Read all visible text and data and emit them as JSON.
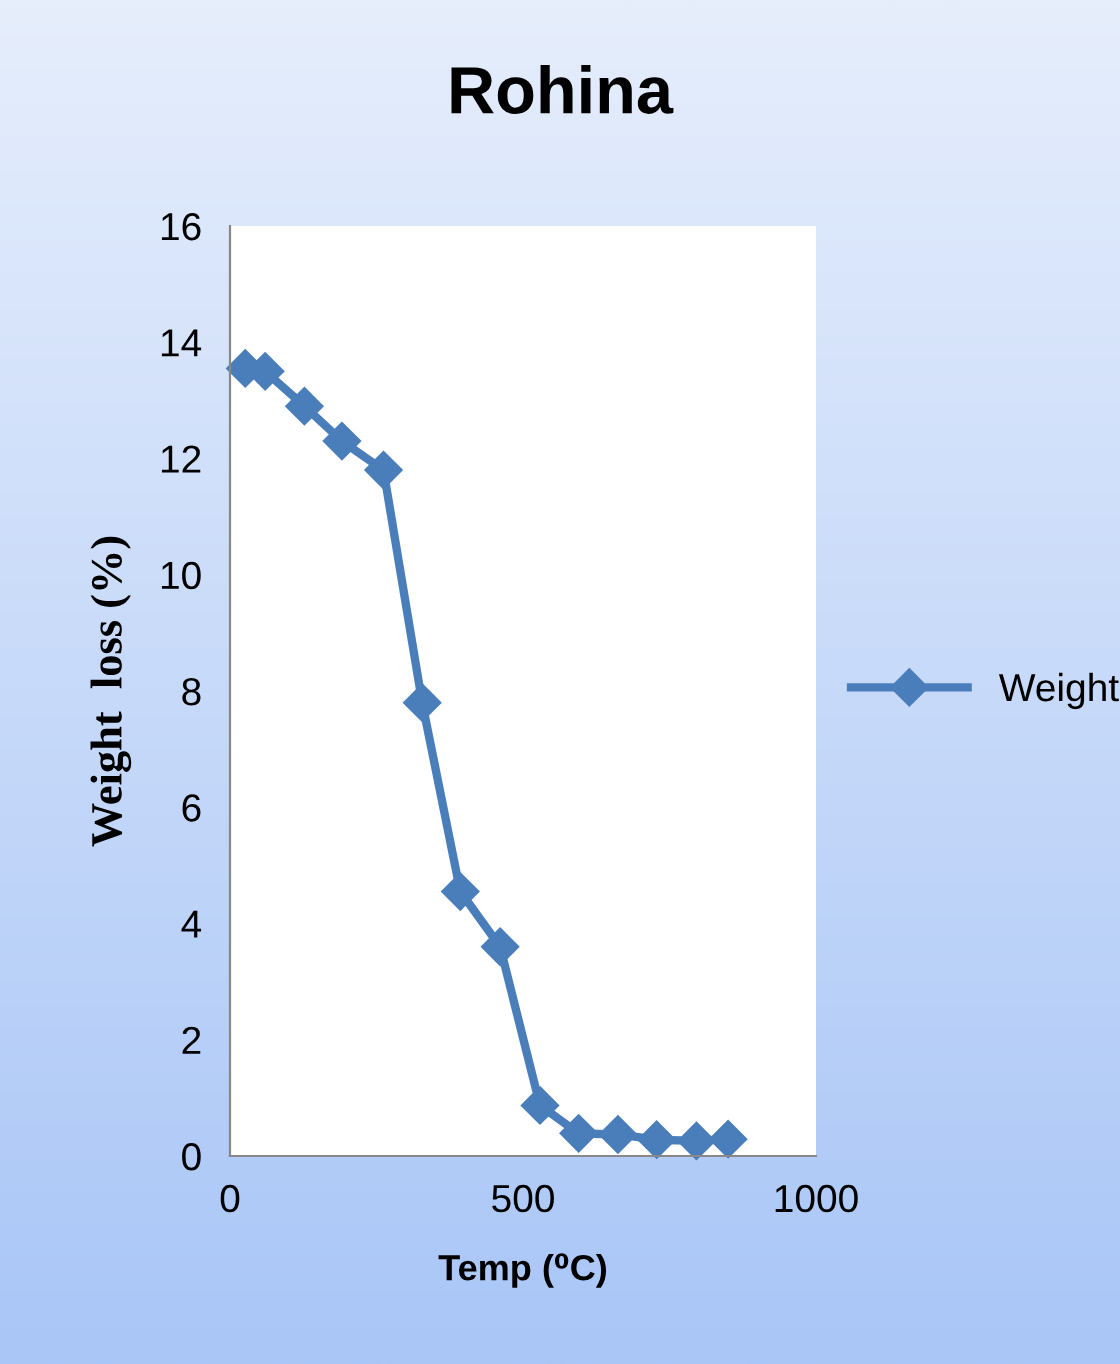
{
  "chart_data": {
    "type": "line",
    "title": "Rohina",
    "xlabel": "Temp (⁰C)",
    "ylabel": "Weight  loss (%)",
    "x": [
      26,
      60,
      127,
      191,
      262,
      328,
      393,
      461,
      529,
      595,
      662,
      728,
      796,
      850
    ],
    "series": [
      {
        "name": "Weight",
        "color": "#4a7ebb",
        "values": [
          13.55,
          13.5,
          12.9,
          12.3,
          11.8,
          7.8,
          4.55,
          3.6,
          0.87,
          0.39,
          0.37,
          0.28,
          0.26,
          0.29
        ]
      }
    ],
    "xlim": [
      0,
      1000
    ],
    "xticks": [
      0,
      500,
      1000
    ],
    "ylim": [
      0,
      16
    ],
    "yticks": [
      0,
      2,
      4,
      6,
      8,
      10,
      12,
      14,
      16
    ],
    "grid": false,
    "legend": "right",
    "marker": "diamond",
    "line_style": "solid"
  }
}
